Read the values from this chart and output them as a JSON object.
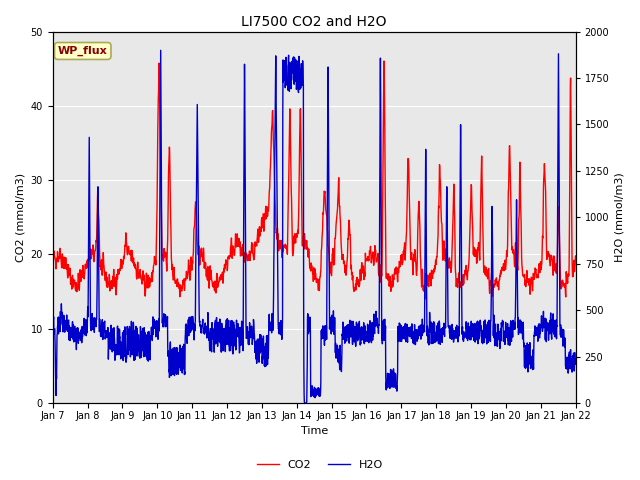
{
  "title": "LI7500 CO2 and H2O",
  "xlabel": "Time",
  "ylabel_left": "CO2 (mmol/m3)",
  "ylabel_right": "H2O (mmol/m3)",
  "xlim": [
    0,
    15
  ],
  "ylim_co2": [
    0,
    50
  ],
  "ylim_h2o": [
    0,
    2000
  ],
  "xtick_labels": [
    "Jan 7",
    "Jan 8",
    "Jan 9",
    "Jan 10",
    "Jan 11",
    "Jan 12",
    "Jan 13",
    "Jan 14",
    "Jan 15",
    "Jan 16",
    "Jan 17",
    "Jan 18",
    "Jan 19",
    "Jan 20",
    "Jan 21",
    "Jan 22"
  ],
  "legend_label_co2": "CO2",
  "legend_label_h2o": "H2O",
  "color_co2": "#FF0000",
  "color_h2o": "#0000CC",
  "annotation_text": "WP_flux",
  "annotation_color": "#8B0000",
  "annotation_bg": "#FFFFCC",
  "background_color": "#E8E8E8",
  "grid_color": "#FFFFFF",
  "title_fontsize": 10,
  "axis_label_fontsize": 8,
  "tick_fontsize": 7,
  "legend_fontsize": 8,
  "linewidth_co2": 1.0,
  "linewidth_h2o": 1.0,
  "annotation_fontsize": 8
}
